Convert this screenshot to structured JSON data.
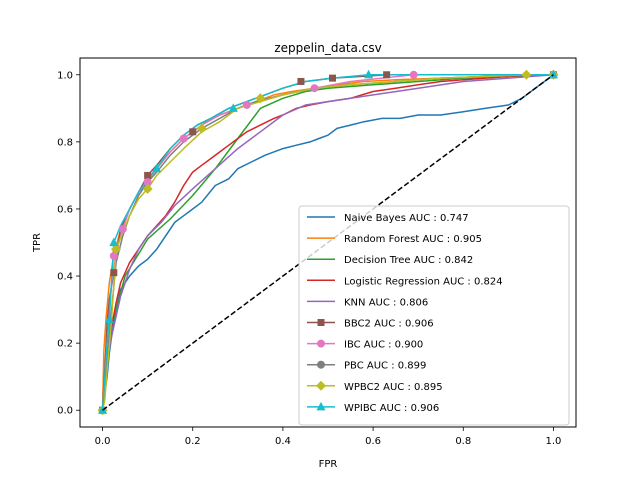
{
  "chart_data": {
    "type": "line",
    "title": "zeppelin_data.csv",
    "xlabel": "FPR",
    "ylabel": "TPR",
    "xlim": [
      -0.05,
      1.05
    ],
    "ylim": [
      -0.05,
      1.05
    ],
    "xticks": [
      "0.0",
      "0.2",
      "0.4",
      "0.6",
      "0.8",
      "1.0"
    ],
    "yticks": [
      "0.0",
      "0.2",
      "0.4",
      "0.6",
      "0.8",
      "1.0"
    ],
    "grid": false,
    "legend_position": "lower-right",
    "diagonal": {
      "style": "dashed",
      "color": "#000000",
      "x": [
        0,
        1
      ],
      "y": [
        0,
        1
      ]
    },
    "series": [
      {
        "name": "Naive Bayes AUC : 0.747",
        "color": "#1f77b4",
        "marker": "",
        "x": [
          0,
          0.005,
          0.01,
          0.015,
          0.02,
          0.03,
          0.04,
          0.06,
          0.08,
          0.1,
          0.12,
          0.14,
          0.16,
          0.18,
          0.2,
          0.22,
          0.25,
          0.28,
          0.3,
          0.33,
          0.36,
          0.4,
          0.43,
          0.46,
          0.48,
          0.5,
          0.52,
          0.55,
          0.58,
          0.62,
          0.66,
          0.7,
          0.75,
          0.8,
          0.85,
          0.9,
          0.93,
          0.96,
          0.98,
          1
        ],
        "y": [
          0,
          0.05,
          0.1,
          0.17,
          0.22,
          0.3,
          0.36,
          0.4,
          0.43,
          0.45,
          0.48,
          0.52,
          0.56,
          0.58,
          0.6,
          0.62,
          0.67,
          0.69,
          0.72,
          0.74,
          0.76,
          0.78,
          0.79,
          0.8,
          0.81,
          0.82,
          0.84,
          0.85,
          0.86,
          0.87,
          0.87,
          0.88,
          0.88,
          0.89,
          0.9,
          0.91,
          0.93,
          0.96,
          0.98,
          1
        ]
      },
      {
        "name": "Random Forest AUC : 0.905",
        "color": "#ff7f0e",
        "marker": "",
        "x": [
          0,
          0.003,
          0.008,
          0.015,
          0.025,
          0.04,
          0.06,
          0.08,
          0.1,
          0.12,
          0.15,
          0.18,
          0.2,
          0.23,
          0.26,
          0.3,
          0.34,
          0.38,
          0.42,
          0.47,
          0.52,
          0.58,
          0.65,
          0.75,
          0.85,
          1
        ],
        "y": [
          0,
          0.18,
          0.28,
          0.38,
          0.46,
          0.54,
          0.6,
          0.65,
          0.69,
          0.72,
          0.77,
          0.81,
          0.83,
          0.86,
          0.88,
          0.9,
          0.92,
          0.94,
          0.95,
          0.96,
          0.97,
          0.98,
          0.985,
          0.99,
          0.995,
          1
        ]
      },
      {
        "name": "Decision Tree AUC : 0.842",
        "color": "#2ca02c",
        "marker": "",
        "x": [
          0,
          0.02,
          0.05,
          0.1,
          0.15,
          0.2,
          0.25,
          0.3,
          0.35,
          0.4,
          0.45,
          0.5,
          0.6,
          0.7,
          0.8,
          0.9,
          1
        ],
        "y": [
          0,
          0.25,
          0.4,
          0.51,
          0.57,
          0.64,
          0.72,
          0.81,
          0.9,
          0.93,
          0.95,
          0.96,
          0.97,
          0.98,
          0.99,
          0.995,
          1
        ]
      },
      {
        "name": "Logistic Regression AUC : 0.824",
        "color": "#d62728",
        "marker": "",
        "x": [
          0,
          0.005,
          0.01,
          0.02,
          0.03,
          0.04,
          0.06,
          0.08,
          0.1,
          0.12,
          0.14,
          0.16,
          0.18,
          0.2,
          0.22,
          0.24,
          0.26,
          0.28,
          0.3,
          0.32,
          0.35,
          0.38,
          0.4,
          0.43,
          0.46,
          0.5,
          0.55,
          0.6,
          0.65,
          0.7,
          0.75,
          0.8,
          0.85,
          0.9,
          0.95,
          1
        ],
        "y": [
          0,
          0.08,
          0.15,
          0.25,
          0.32,
          0.38,
          0.44,
          0.48,
          0.52,
          0.55,
          0.58,
          0.62,
          0.67,
          0.71,
          0.73,
          0.75,
          0.77,
          0.79,
          0.81,
          0.83,
          0.85,
          0.87,
          0.88,
          0.9,
          0.91,
          0.92,
          0.93,
          0.95,
          0.96,
          0.97,
          0.98,
          0.985,
          0.99,
          0.995,
          1,
          1
        ]
      },
      {
        "name": "KNN AUC : 0.806",
        "color": "#9467bd",
        "marker": "",
        "x": [
          0,
          0.01,
          0.02,
          0.04,
          0.06,
          0.08,
          0.1,
          0.13,
          0.16,
          0.2,
          0.25,
          0.3,
          0.35,
          0.4,
          0.45,
          0.5,
          0.6,
          0.7,
          0.8,
          0.9,
          1
        ],
        "y": [
          0,
          0.15,
          0.22,
          0.34,
          0.42,
          0.48,
          0.52,
          0.56,
          0.61,
          0.66,
          0.72,
          0.78,
          0.83,
          0.88,
          0.91,
          0.92,
          0.94,
          0.96,
          0.98,
          0.99,
          1
        ]
      },
      {
        "name": "BBC2 AUC : 0.906",
        "color": "#8c564b",
        "marker": "square",
        "x": [
          0,
          0.005,
          0.01,
          0.015,
          0.025,
          0.04,
          0.06,
          0.08,
          0.1,
          0.12,
          0.15,
          0.18,
          0.21,
          0.24,
          0.28,
          0.32,
          0.36,
          0.4,
          0.45,
          0.51,
          0.57,
          0.63,
          0.7,
          0.8,
          0.9,
          1
        ],
        "y": [
          0,
          0.12,
          0.26,
          0.33,
          0.41,
          0.54,
          0.6,
          0.65,
          0.7,
          0.73,
          0.78,
          0.82,
          0.85,
          0.87,
          0.9,
          0.92,
          0.94,
          0.96,
          0.98,
          0.99,
          0.995,
          1,
          1,
          1,
          1,
          1
        ],
        "markers_x": [
          0,
          0.025,
          0.1,
          0.2,
          0.44,
          0.51,
          0.63,
          1
        ],
        "markers_y": [
          0,
          0.41,
          0.7,
          0.83,
          0.98,
          0.99,
          1,
          1
        ]
      },
      {
        "name": "IBC AUC : 0.900",
        "color": "#e377c2",
        "marker": "circle",
        "x": [
          0,
          0.005,
          0.01,
          0.02,
          0.03,
          0.045,
          0.06,
          0.08,
          0.1,
          0.12,
          0.15,
          0.18,
          0.22,
          0.26,
          0.3,
          0.34,
          0.4,
          0.47,
          0.55,
          0.62,
          0.69,
          0.8,
          0.9,
          1
        ],
        "y": [
          0,
          0.05,
          0.2,
          0.38,
          0.47,
          0.54,
          0.6,
          0.65,
          0.68,
          0.72,
          0.77,
          0.81,
          0.85,
          0.88,
          0.9,
          0.92,
          0.94,
          0.96,
          0.98,
          0.99,
          1,
          1,
          1,
          1
        ],
        "markers_x": [
          0,
          0.025,
          0.045,
          0.1,
          0.18,
          0.32,
          0.47,
          0.69,
          1
        ],
        "markers_y": [
          0,
          0.46,
          0.54,
          0.68,
          0.81,
          0.91,
          0.96,
          1,
          1
        ]
      },
      {
        "name": "PBC AUC : 0.899",
        "color": "#7f7f7f",
        "marker": "circle",
        "x": [
          0,
          0.005,
          0.01,
          0.02,
          0.03,
          0.045,
          0.06,
          0.08,
          0.1,
          0.12,
          0.15,
          0.18,
          0.22,
          0.26,
          0.3,
          0.34,
          0.4,
          0.47,
          0.55,
          0.65,
          0.75,
          0.85,
          0.94,
          1
        ],
        "y": [
          0,
          0.04,
          0.15,
          0.3,
          0.44,
          0.52,
          0.58,
          0.64,
          0.68,
          0.71,
          0.76,
          0.8,
          0.84,
          0.87,
          0.9,
          0.92,
          0.94,
          0.96,
          0.97,
          0.98,
          0.99,
          0.995,
          1,
          1
        ],
        "markers_x": [
          0,
          1
        ],
        "markers_y": [
          0,
          1
        ]
      },
      {
        "name": "WPBC2 AUC : 0.895",
        "color": "#bcbd22",
        "marker": "diamond",
        "x": [
          0,
          0.005,
          0.01,
          0.02,
          0.03,
          0.045,
          0.06,
          0.08,
          0.1,
          0.12,
          0.15,
          0.18,
          0.22,
          0.26,
          0.3,
          0.35,
          0.4,
          0.47,
          0.55,
          0.65,
          0.75,
          0.85,
          0.94,
          1
        ],
        "y": [
          0,
          0.03,
          0.12,
          0.27,
          0.48,
          0.53,
          0.58,
          0.63,
          0.66,
          0.7,
          0.74,
          0.78,
          0.83,
          0.86,
          0.9,
          0.92,
          0.94,
          0.96,
          0.97,
          0.98,
          0.99,
          0.995,
          1,
          1
        ],
        "markers_x": [
          0,
          0.03,
          0.1,
          0.22,
          0.35,
          0.94,
          1
        ],
        "markers_y": [
          0,
          0.48,
          0.66,
          0.84,
          0.93,
          1,
          1
        ]
      },
      {
        "name": "WPIBC AUC : 0.906",
        "color": "#17becf",
        "marker": "triangle",
        "x": [
          0,
          0.005,
          0.01,
          0.015,
          0.025,
          0.04,
          0.06,
          0.08,
          0.1,
          0.12,
          0.15,
          0.18,
          0.21,
          0.24,
          0.28,
          0.32,
          0.36,
          0.4,
          0.45,
          0.51,
          0.59,
          0.65,
          0.75,
          0.85,
          1
        ],
        "y": [
          0,
          0.1,
          0.2,
          0.27,
          0.5,
          0.55,
          0.6,
          0.65,
          0.69,
          0.72,
          0.78,
          0.82,
          0.85,
          0.87,
          0.9,
          0.92,
          0.94,
          0.96,
          0.98,
          0.99,
          1,
          1,
          1,
          1,
          1
        ],
        "markers_x": [
          0,
          0.015,
          0.025,
          0.12,
          0.29,
          0.59,
          1
        ],
        "markers_y": [
          0,
          0.27,
          0.5,
          0.72,
          0.9,
          1,
          1
        ]
      }
    ]
  }
}
